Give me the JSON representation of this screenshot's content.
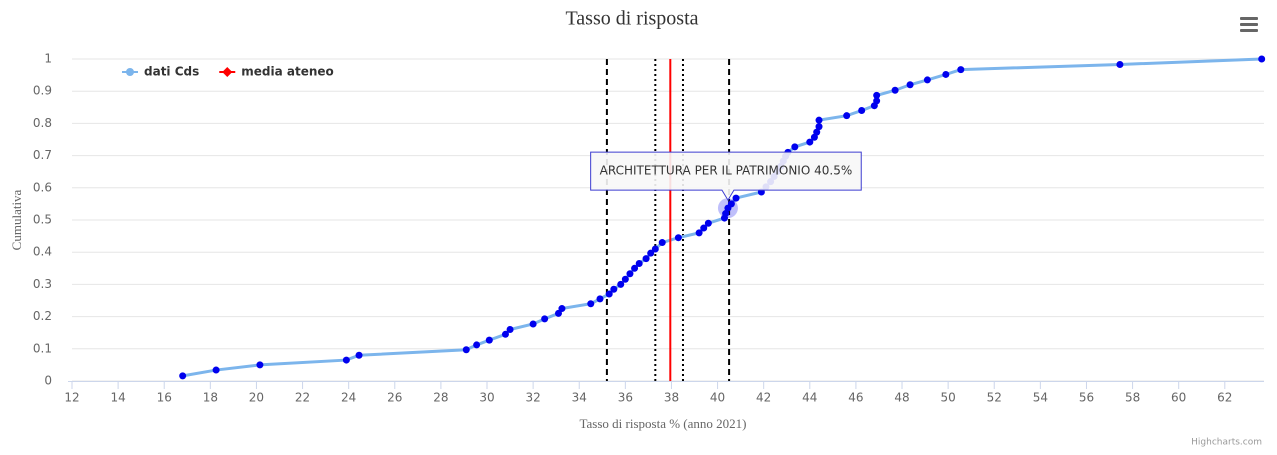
{
  "chart_data": {
    "type": "line",
    "title": "Tasso di risposta",
    "x_label": "Tasso di risposta % (anno 2021)",
    "y_label": "Cumulativa",
    "credits": "Highcharts.com",
    "xlim": [
      12,
      63.7
    ],
    "ylim": [
      0,
      1
    ],
    "xticks": [
      12,
      14,
      16,
      18,
      20,
      22,
      24,
      26,
      28,
      30,
      32,
      34,
      36,
      38,
      40,
      42,
      44,
      46,
      48,
      50,
      52,
      54,
      56,
      58,
      60,
      62
    ],
    "yticks": [
      0,
      0.1,
      0.2,
      0.3,
      0.4,
      0.5,
      0.6,
      0.7,
      0.8,
      0.9,
      1
    ],
    "grid": true,
    "legend": "top-left",
    "series": [
      {
        "name": "dati Cds",
        "color": "#7cb5ec",
        "marker_color": "#0000ee",
        "x": [
          16.8,
          18.25,
          20.15,
          23.9,
          24.45,
          29.1,
          29.55,
          30.1,
          30.8,
          31.0,
          32.0,
          32.5,
          33.1,
          33.25,
          34.5,
          34.9,
          35.3,
          35.5,
          35.8,
          36.0,
          36.2,
          36.4,
          36.6,
          36.9,
          37.1,
          37.3,
          37.6,
          38.3,
          39.2,
          39.4,
          39.6,
          40.3,
          40.35,
          40.45,
          40.6,
          40.8,
          41.9,
          42.1,
          42.3,
          42.45,
          42.6,
          42.75,
          42.85,
          42.95,
          43.05,
          43.35,
          44.0,
          44.2,
          44.3,
          44.4,
          44.4,
          45.6,
          46.25,
          46.8,
          46.9,
          46.9,
          47.7,
          48.35,
          49.1,
          49.9,
          50.55,
          57.45,
          63.6
        ],
        "values": [
          0.016,
          0.034,
          0.05,
          0.065,
          0.08,
          0.097,
          0.112,
          0.127,
          0.145,
          0.16,
          0.177,
          0.193,
          0.21,
          0.225,
          0.24,
          0.255,
          0.27,
          0.285,
          0.3,
          0.316,
          0.333,
          0.35,
          0.365,
          0.38,
          0.397,
          0.41,
          0.43,
          0.445,
          0.46,
          0.475,
          0.49,
          0.506,
          0.52,
          0.537,
          0.55,
          0.568,
          0.587,
          0.603,
          0.619,
          0.635,
          0.651,
          0.667,
          0.683,
          0.698,
          0.71,
          0.727,
          0.742,
          0.757,
          0.773,
          0.79,
          0.81,
          0.824,
          0.84,
          0.855,
          0.87,
          0.887,
          0.903,
          0.92,
          0.935,
          0.952,
          0.967,
          0.983,
          1
        ]
      },
      {
        "name": "media ateneo",
        "color": "#ff0000",
        "x": [
          37.95,
          37.95
        ],
        "values": [
          0,
          1
        ]
      }
    ],
    "plot_lines": [
      {
        "value": 35.2,
        "dash": "dashed",
        "color": "#000000"
      },
      {
        "value": 37.3,
        "dash": "dotted",
        "color": "#000000"
      },
      {
        "value": 38.5,
        "dash": "dotted",
        "color": "#000000"
      },
      {
        "value": 40.5,
        "dash": "dashed",
        "color": "#000000"
      }
    ],
    "tooltip": {
      "text": "ARCHITETTURA PER IL PATRIMONIO 40.5%",
      "point": 33
    }
  }
}
